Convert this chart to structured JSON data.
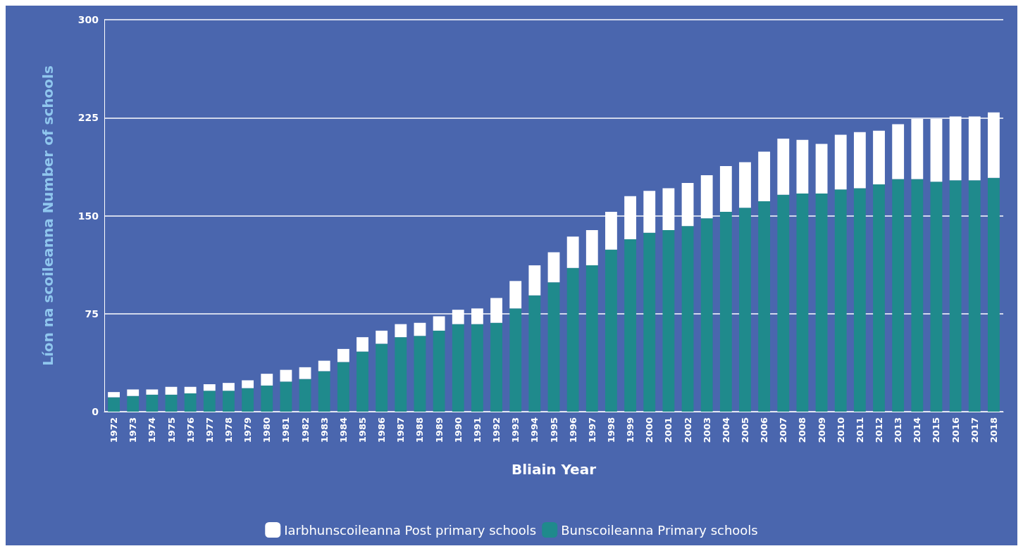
{
  "chart_data": {
    "type": "bar",
    "stacked": true,
    "xlabel": "Bliain Year",
    "ylabel": "Líon na scoileanna Number of schools",
    "categories": [
      "1972",
      "1973",
      "1974",
      "1975",
      "1976",
      "1977",
      "1978",
      "1979",
      "1980",
      "1981",
      "1982",
      "1983",
      "1984",
      "1985",
      "1986",
      "1987",
      "1988",
      "1989",
      "1990",
      "1991",
      "1992",
      "1993",
      "1994",
      "1995",
      "1996",
      "1997",
      "1998",
      "1999",
      "2000",
      "2001",
      "2002",
      "2003",
      "2004",
      "2005",
      "2006",
      "2007",
      "2008",
      "2009",
      "2010",
      "2011",
      "2012",
      "2013",
      "2014",
      "2015",
      "2016",
      "2017",
      "2018"
    ],
    "series": [
      {
        "name": "Bunscoileanna Primary schools",
        "color": "#1f8a8c",
        "values": [
          11,
          12,
          13,
          13,
          14,
          16,
          16,
          18,
          20,
          23,
          25,
          31,
          38,
          46,
          52,
          57,
          58,
          62,
          67,
          67,
          68,
          79,
          89,
          99,
          110,
          112,
          124,
          132,
          137,
          139,
          142,
          148,
          153,
          156,
          161,
          166,
          167,
          167,
          170,
          171,
          174,
          178,
          178,
          176,
          177,
          177,
          179
        ]
      },
      {
        "name": "Iarbhunscoileanna Post primary schools",
        "color": "#ffffff",
        "values": [
          4,
          5,
          4,
          6,
          5,
          5,
          6,
          6,
          9,
          9,
          9,
          8,
          10,
          11,
          10,
          10,
          10,
          11,
          11,
          12,
          19,
          21,
          23,
          23,
          24,
          27,
          29,
          33,
          32,
          32,
          33,
          33,
          35,
          35,
          38,
          43,
          41,
          38,
          42,
          43,
          41,
          42,
          46,
          48,
          49,
          49,
          50
        ]
      }
    ],
    "ylim": [
      0,
      300
    ],
    "yticks": [
      0,
      75,
      150,
      225,
      300
    ],
    "grid": "y",
    "legend": "bottom"
  }
}
